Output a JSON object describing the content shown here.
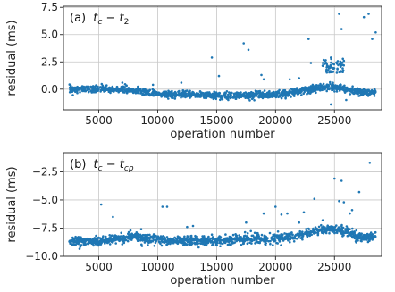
{
  "figure": {
    "panels": [
      {
        "panel_label": "(a)",
        "title_math": {
          "base": "t",
          "sub1": "c",
          "op": " − ",
          "base2": "t",
          "sub2": "2"
        },
        "ylabel": "residual (ms)",
        "xlabel": "operation number"
      },
      {
        "panel_label": "(b)",
        "title_math": {
          "base": "t",
          "sub1": "c",
          "op": " − ",
          "base2": "t",
          "sub2": "cp"
        },
        "ylabel": "residual (ms)",
        "xlabel": "operation number"
      }
    ],
    "point_color": "#1f77b4"
  },
  "chart_data": [
    {
      "type": "scatter",
      "xlim": [
        2000,
        29000
      ],
      "ylim": [
        -1.9,
        7.6
      ],
      "xticks": [
        5000,
        10000,
        15000,
        20000,
        25000
      ],
      "yticks": [
        7.5,
        5.0,
        2.5,
        0.0
      ],
      "ytick_labels": [
        "7.5",
        "5.0",
        "2.5",
        "0.0"
      ],
      "xtick_labels": [
        "5000",
        "10000",
        "15000",
        "20000",
        "25000"
      ],
      "grid": true,
      "band": [
        {
          "x": 2500,
          "y": 0.0
        },
        {
          "x": 5000,
          "y": 0.0
        },
        {
          "x": 7500,
          "y": -0.05
        },
        {
          "x": 9000,
          "y": -0.3
        },
        {
          "x": 10500,
          "y": -0.5
        },
        {
          "x": 12500,
          "y": -0.5
        },
        {
          "x": 15000,
          "y": -0.6
        },
        {
          "x": 17500,
          "y": -0.6
        },
        {
          "x": 19500,
          "y": -0.5
        },
        {
          "x": 21000,
          "y": -0.4
        },
        {
          "x": 22500,
          "y": -0.1
        },
        {
          "x": 23500,
          "y": 0.1
        },
        {
          "x": 24500,
          "y": 0.2
        },
        {
          "x": 25500,
          "y": 0.2
        },
        {
          "x": 26500,
          "y": -0.2
        },
        {
          "x": 28500,
          "y": -0.3
        }
      ],
      "band_spread": 0.35,
      "outliers": [
        {
          "x": 14600,
          "y": 2.9
        },
        {
          "x": 17300,
          "y": 4.2
        },
        {
          "x": 17700,
          "y": 3.6
        },
        {
          "x": 22800,
          "y": 4.6
        },
        {
          "x": 24200,
          "y": 2.6
        },
        {
          "x": 24700,
          "y": 2.9
        },
        {
          "x": 25400,
          "y": 6.9
        },
        {
          "x": 25600,
          "y": 5.5
        },
        {
          "x": 25800,
          "y": 2.6
        },
        {
          "x": 27500,
          "y": 6.6
        },
        {
          "x": 27900,
          "y": 6.9
        },
        {
          "x": 28200,
          "y": 4.6
        },
        {
          "x": 28500,
          "y": 5.2
        },
        {
          "x": 18800,
          "y": 1.3
        },
        {
          "x": 21200,
          "y": 0.9
        },
        {
          "x": 22000,
          "y": 1.0
        },
        {
          "x": 23000,
          "y": 2.4
        },
        {
          "x": 12000,
          "y": 0.6
        },
        {
          "x": 15200,
          "y": 1.2
        },
        {
          "x": 19000,
          "y": 0.9
        },
        {
          "x": 24700,
          "y": -1.4
        },
        {
          "x": 26000,
          "y": -1.0
        },
        {
          "x": 7000,
          "y": 0.6
        },
        {
          "x": 9600,
          "y": 0.4
        }
      ],
      "cluster": {
        "x": [
          24000,
          25800
        ],
        "y": [
          1.5,
          2.8
        ],
        "count": 60
      }
    },
    {
      "type": "scatter",
      "xlim": [
        2000,
        29000
      ],
      "ylim": [
        -10.0,
        -0.8
      ],
      "xticks": [
        5000,
        10000,
        15000,
        20000,
        25000
      ],
      "yticks": [
        -2.5,
        -5.0,
        -7.5,
        -10.0
      ],
      "ytick_labels": [
        "−2.5",
        "−5.0",
        "−7.5",
        "−10.0"
      ],
      "xtick_labels": [
        "5000",
        "10000",
        "15000",
        "20000",
        "25000"
      ],
      "grid": true,
      "band": [
        {
          "x": 2500,
          "y": -8.6
        },
        {
          "x": 4000,
          "y": -8.7
        },
        {
          "x": 5500,
          "y": -8.6
        },
        {
          "x": 7000,
          "y": -8.4
        },
        {
          "x": 8000,
          "y": -8.2
        },
        {
          "x": 9000,
          "y": -8.5
        },
        {
          "x": 11000,
          "y": -8.6
        },
        {
          "x": 13000,
          "y": -8.6
        },
        {
          "x": 15000,
          "y": -8.6
        },
        {
          "x": 17500,
          "y": -8.5
        },
        {
          "x": 20000,
          "y": -8.4
        },
        {
          "x": 22000,
          "y": -8.2
        },
        {
          "x": 23000,
          "y": -7.8
        },
        {
          "x": 24500,
          "y": -7.6
        },
        {
          "x": 26000,
          "y": -7.8
        },
        {
          "x": 27000,
          "y": -8.3
        },
        {
          "x": 28500,
          "y": -8.3
        }
      ],
      "band_spread": 0.45,
      "outliers": [
        {
          "x": 5200,
          "y": -5.4
        },
        {
          "x": 6200,
          "y": -6.5
        },
        {
          "x": 10400,
          "y": -5.6
        },
        {
          "x": 10800,
          "y": -5.6
        },
        {
          "x": 13000,
          "y": -7.3
        },
        {
          "x": 19000,
          "y": -6.2
        },
        {
          "x": 20000,
          "y": -5.6
        },
        {
          "x": 20500,
          "y": -6.3
        },
        {
          "x": 21000,
          "y": -6.2
        },
        {
          "x": 22400,
          "y": -6.1
        },
        {
          "x": 23300,
          "y": -4.9
        },
        {
          "x": 25000,
          "y": -3.1
        },
        {
          "x": 25600,
          "y": -3.3
        },
        {
          "x": 25400,
          "y": -5.1
        },
        {
          "x": 25800,
          "y": -5.2
        },
        {
          "x": 26300,
          "y": -6.2
        },
        {
          "x": 27100,
          "y": -4.3
        },
        {
          "x": 28000,
          "y": -1.7
        },
        {
          "x": 26500,
          "y": -5.9
        },
        {
          "x": 17500,
          "y": -7.0
        },
        {
          "x": 8600,
          "y": -7.6
        },
        {
          "x": 12500,
          "y": -7.4
        },
        {
          "x": 24000,
          "y": -6.8
        },
        {
          "x": 22000,
          "y": -7.0
        }
      ]
    }
  ]
}
